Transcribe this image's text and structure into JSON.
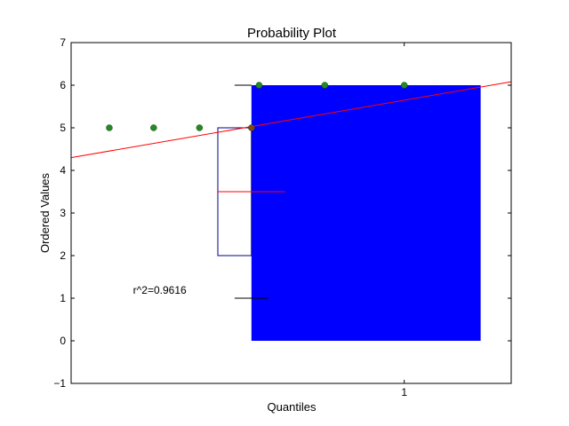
{
  "chart_data": {
    "type": "scatter",
    "title": "Probability Plot",
    "xlabel": "Quantiles",
    "ylabel": "Ordered Values",
    "xlim": [
      -1.18,
      1.7
    ],
    "ylim": [
      -1,
      7
    ],
    "x_ticks": [
      1
    ],
    "x_tick_labels": [
      "1"
    ],
    "y_ticks": [
      -1,
      0,
      1,
      2,
      3,
      4,
      5,
      6,
      7
    ],
    "y_tick_labels": [
      "−1",
      "0",
      "1",
      "2",
      "3",
      "4",
      "5",
      "6",
      "7"
    ],
    "grid": false,
    "points": {
      "x": [
        -0.93,
        -0.64,
        -0.34,
        0,
        0.05,
        0.48,
        1.0
      ],
      "y": [
        5,
        5,
        5,
        5,
        6,
        6,
        6
      ],
      "colors": [
        "#228B22",
        "#228B22",
        "#228B22",
        "#8B4513",
        "#228B22",
        "#228B22",
        "#228B22"
      ]
    },
    "fit_line": {
      "x": [
        -1.18,
        1.7
      ],
      "y": [
        4.3,
        6.08
      ],
      "color": "#ff0000"
    },
    "bar": {
      "x0": 0.0,
      "x1": 1.5,
      "y0": 0,
      "y1": 6,
      "color": "#0000ff"
    },
    "boxplot": {
      "x_left": -0.22,
      "x_right": 0.0,
      "q1": 2,
      "median": 3.5,
      "q3": 5,
      "median_line_x": [
        -0.22,
        0.22
      ],
      "color": "#00008b",
      "median_color": "#ff0000"
    },
    "h_markers": [
      {
        "x": [
          -0.11,
          0.0
        ],
        "y": 6
      },
      {
        "x": [
          -0.11,
          0.11
        ],
        "y": 1
      }
    ],
    "annotation": {
      "text": "r^2=0.9616",
      "x": -0.6,
      "y": 1.1
    }
  }
}
